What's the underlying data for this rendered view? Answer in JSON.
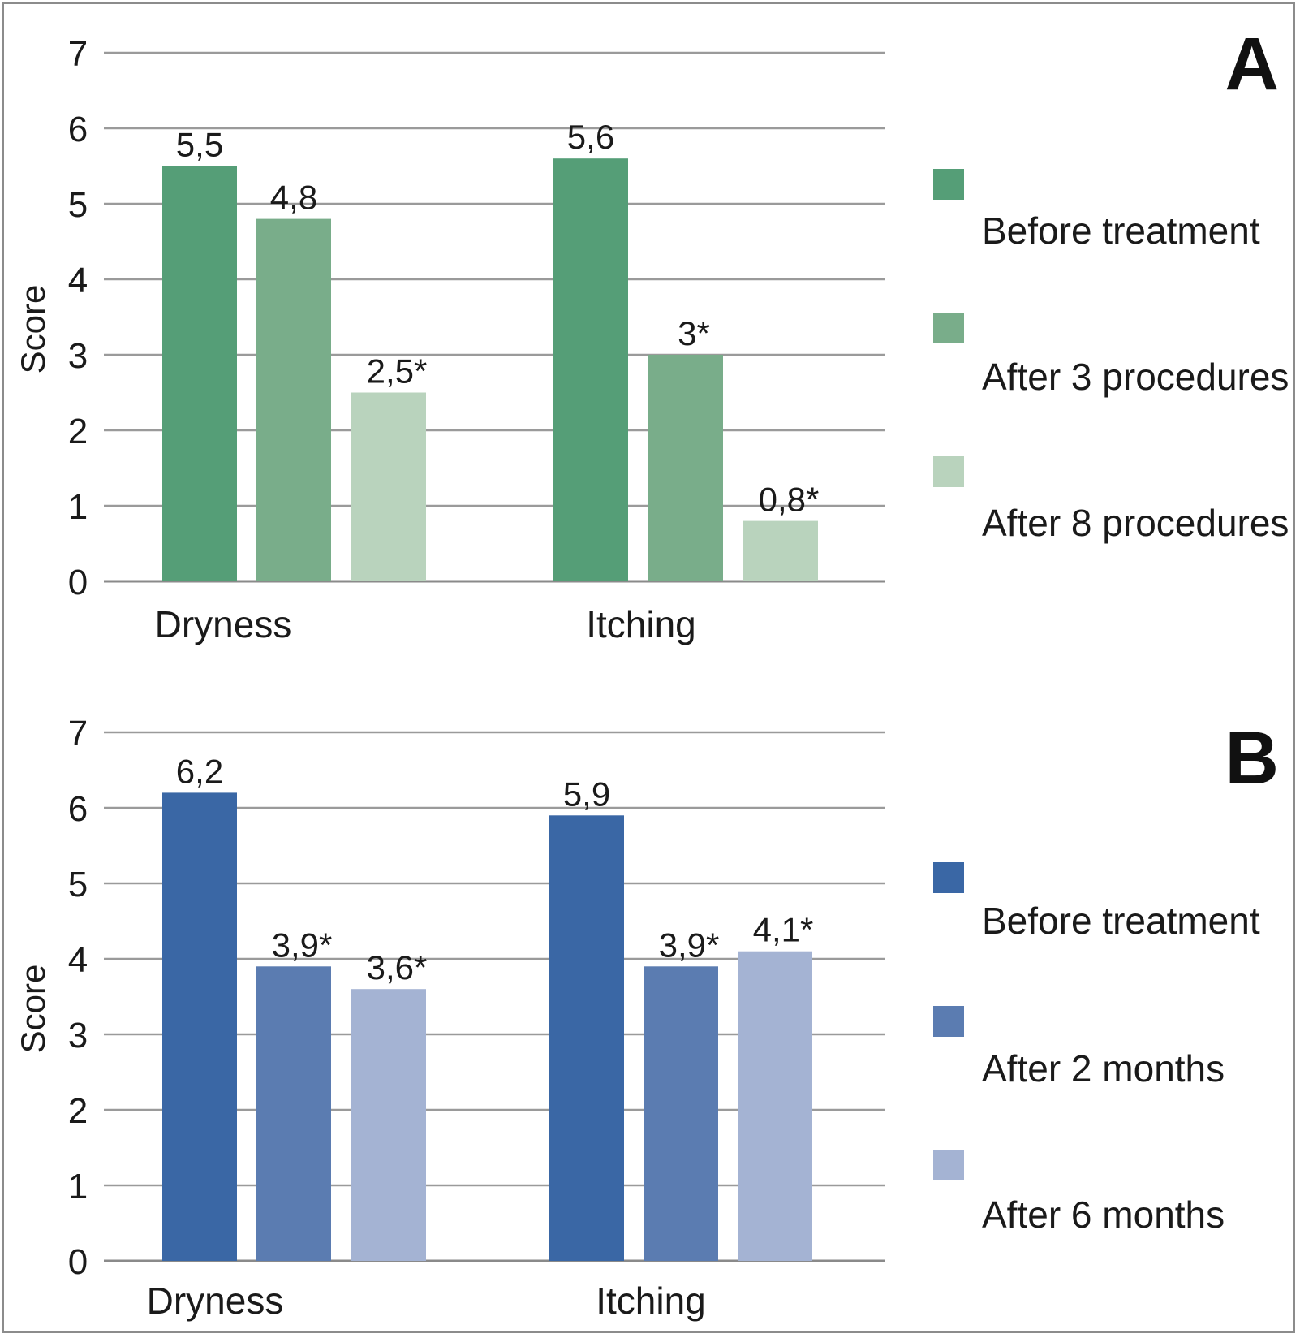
{
  "chart_data": [
    {
      "panel": "A",
      "type": "bar",
      "ylabel": "Score",
      "ylim": [
        0,
        7
      ],
      "yticks": [
        "0",
        "1",
        "2",
        "3",
        "4",
        "5",
        "6",
        "7"
      ],
      "categories": [
        "Dryness",
        "Itching"
      ],
      "series": [
        {
          "name": "Before treatment",
          "color": "#559e77",
          "values": [
            5.5,
            5.6
          ],
          "labels": [
            "5,5",
            "5,6"
          ]
        },
        {
          "name": "After 3 procedures",
          "color": "#79ad8a",
          "values": [
            4.8,
            3.0
          ],
          "labels": [
            "4,8",
            "3*"
          ]
        },
        {
          "name": "After 8 procedures",
          "color": "#b9d3bd",
          "values": [
            2.5,
            0.8
          ],
          "labels": [
            "2,5*",
            "0,8*"
          ]
        }
      ],
      "grid": true,
      "legend": "right"
    },
    {
      "panel": "B",
      "type": "bar",
      "ylabel": "Score",
      "ylim": [
        0,
        7
      ],
      "yticks": [
        "0",
        "1",
        "2",
        "3",
        "4",
        "5",
        "6",
        "7"
      ],
      "categories": [
        "Dryness",
        "Itching"
      ],
      "series": [
        {
          "name": "Before treatment",
          "color": "#3a67a5",
          "values": [
            6.2,
            5.9
          ],
          "labels": [
            "6,2",
            "5,9"
          ]
        },
        {
          "name": "After 2 months",
          "color": "#5b7cb1",
          "values": [
            3.9,
            3.9
          ],
          "labels": [
            "3,9*",
            "3,9*"
          ]
        },
        {
          "name": "After 6 months",
          "color": "#a4b3d3",
          "values": [
            3.6,
            4.1
          ],
          "labels": [
            "3,6*",
            "4,1*"
          ]
        }
      ],
      "grid": true,
      "legend": "right"
    }
  ]
}
